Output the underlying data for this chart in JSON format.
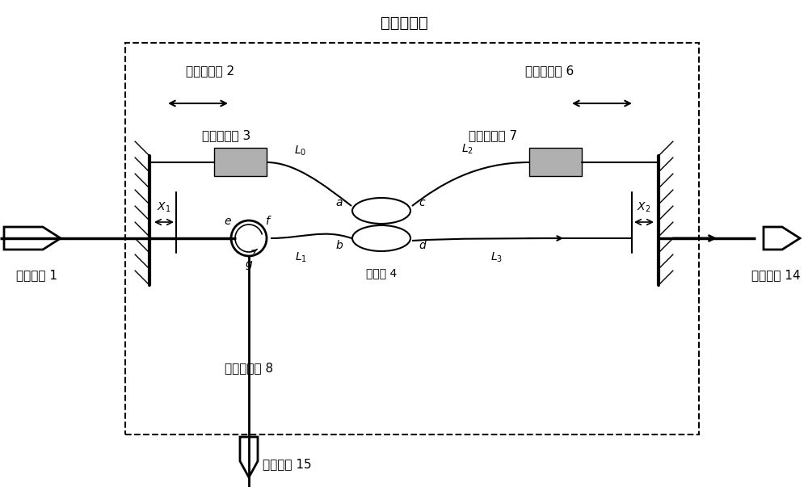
{
  "title": "光程相关器",
  "bg_color": "#ffffff",
  "box_color": "#000000",
  "line_color": "#000000",
  "gray_color": "#888888",
  "labels": {
    "title": "光程相关器",
    "mirror_left": "反射扫描镜 2",
    "mirror_right": "反射扫描镜 6",
    "collimator_left": "光纤准直器 3",
    "collimator_right": "光纤准直器 7",
    "coupler": "耦合器 4",
    "circulator": "光纤环形器 8",
    "input": "输入信号 1",
    "output_right": "输出信号 14",
    "output_down": "输出信号 15",
    "L0": "$L_0$",
    "L1": "$L_1$",
    "L2": "$L_2$",
    "L3": "$L_3$",
    "X1": "$X_1$",
    "X2": "$X_2$",
    "a": "$a$",
    "b": "$b$",
    "c": "$c$",
    "d": "$d$",
    "e": "$e$",
    "f": "$f$",
    "g": "$g$"
  }
}
